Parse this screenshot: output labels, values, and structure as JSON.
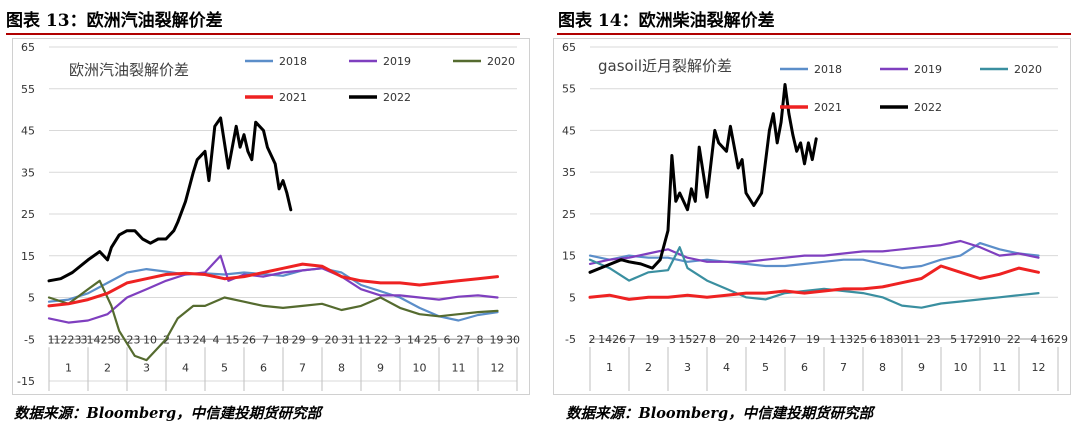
{
  "figures": [
    {
      "id": "left",
      "figure_title": "图表 13：欧洲汽油裂解价差",
      "source": "数据来源：Bloomberg，中信建投期货研究部"
    },
    {
      "id": "right",
      "figure_title": "图表 14：欧洲柴油裂解价差",
      "source": "数据来源：Bloomberg，中信建投期货研究部"
    }
  ],
  "colors": {
    "2018": "#5b8ec9",
    "2019": "#7f3fbf",
    "2020": "#556b2f",
    "2021": "#ee2222",
    "2022": "#000000",
    "gasoil_2020": "#3a8fa0"
  },
  "chart_data": [
    {
      "id": "left",
      "type": "line",
      "title": "欧洲汽油裂解价差",
      "ylim": [
        -15,
        65
      ],
      "yticks": [
        -15,
        -5,
        5,
        15,
        25,
        35,
        45,
        55,
        65
      ],
      "months": [
        "1",
        "2",
        "3",
        "4",
        "5",
        "6",
        "7",
        "8",
        "9",
        "10",
        "11",
        "12"
      ],
      "day_ticks": [
        "1",
        "1223",
        "3",
        "1425",
        "8",
        "23",
        "10",
        "2",
        "13",
        "24",
        "4",
        "15",
        "26",
        "7",
        "18",
        "29",
        "9",
        "20",
        "31",
        "11",
        "22",
        "3",
        "14",
        "25",
        "6",
        "27",
        "8",
        "19",
        "30"
      ],
      "series": [
        {
          "name": "2018",
          "color": "#5b8ec9",
          "x": [
            1,
            1.5,
            2,
            2.5,
            3,
            3.5,
            4,
            4.5,
            5,
            5.5,
            6,
            6.5,
            7,
            7.5,
            8,
            8.5,
            9,
            9.5,
            10,
            10.5,
            11,
            11.5,
            12,
            12.5
          ],
          "values": [
            4,
            4.5,
            6,
            8.5,
            11,
            11.8,
            11.2,
            10.5,
            10.8,
            10.5,
            11,
            10.6,
            10.2,
            11.5,
            12,
            11,
            8,
            6.5,
            5,
            2.5,
            0.5,
            -0.5,
            0.8,
            1.5
          ]
        },
        {
          "name": "2019",
          "color": "#7f3fbf",
          "x": [
            1,
            1.5,
            2,
            2.5,
            3,
            3.5,
            4,
            4.5,
            5,
            5.4,
            5.6,
            6,
            6.5,
            7,
            7.5,
            8,
            8.5,
            9,
            9.5,
            10,
            10.5,
            11,
            11.5,
            12,
            12.5
          ],
          "values": [
            0,
            -1,
            -0.5,
            1,
            5,
            7,
            9,
            10.5,
            11,
            15,
            9,
            10.5,
            10,
            11,
            11.5,
            12,
            10,
            7,
            5.5,
            5.5,
            5,
            4.5,
            5.2,
            5.5,
            5
          ]
        },
        {
          "name": "2020",
          "color": "#556b2f",
          "x": [
            1,
            1.5,
            2,
            2.3,
            2.6,
            2.8,
            3,
            3.2,
            3.5,
            3.8,
            4,
            4.3,
            4.7,
            5,
            5.5,
            6,
            6.5,
            7,
            7.5,
            8,
            8.5,
            9,
            9.5,
            10,
            10.5,
            11,
            11.5,
            12,
            12.5
          ],
          "values": [
            5,
            3.5,
            7,
            9,
            3,
            -3,
            -6,
            -9,
            -10,
            -7,
            -5,
            0,
            3,
            3,
            5,
            4,
            3,
            2.5,
            3,
            3.5,
            2,
            3,
            5,
            2.5,
            1,
            0.5,
            1,
            1.5,
            1.8
          ]
        },
        {
          "name": "2021",
          "color": "#ee2222",
          "x": [
            1,
            1.5,
            2,
            2.5,
            3,
            3.5,
            4,
            4.5,
            5,
            5.5,
            6,
            6.5,
            7,
            7.5,
            8,
            8.5,
            9,
            9.5,
            10,
            10.5,
            11,
            11.5,
            12,
            12.5
          ],
          "values": [
            3,
            3.5,
            4.5,
            6,
            8.5,
            9.5,
            10.5,
            10.8,
            10.5,
            9.5,
            10,
            11,
            12,
            13,
            12.5,
            10,
            9,
            8.5,
            8.5,
            8,
            8.5,
            9,
            9.5,
            10
          ]
        },
        {
          "name": "2022",
          "color": "#000000",
          "x": [
            1,
            1.3,
            1.6,
            2,
            2.3,
            2.5,
            2.6,
            2.8,
            3,
            3.2,
            3.4,
            3.6,
            3.8,
            4,
            4.2,
            4.3,
            4.5,
            4.7,
            4.8,
            5,
            5.1,
            5.25,
            5.4,
            5.6,
            5.8,
            5.9,
            6,
            6.1,
            6.2,
            6.3,
            6.5,
            6.6,
            6.8,
            6.9,
            7,
            7.1,
            7.2
          ],
          "values": [
            9,
            9.5,
            11,
            14,
            16,
            14,
            17,
            20,
            21,
            21,
            19,
            18,
            19,
            19,
            21,
            23,
            28,
            35,
            38,
            40,
            33,
            46,
            48,
            36,
            46,
            41,
            44,
            40,
            38,
            47,
            45,
            41,
            37,
            31,
            33,
            30,
            26
          ]
        }
      ]
    },
    {
      "id": "right",
      "type": "line",
      "title": "gasoil近月裂解价差",
      "ylim": [
        -5,
        65
      ],
      "yticks": [
        -5,
        5,
        15,
        25,
        35,
        45,
        55,
        65
      ],
      "months": [
        "1",
        "2",
        "3",
        "4",
        "5",
        "6",
        "7",
        "8",
        "9",
        "10",
        "11",
        "12"
      ],
      "day_ticks": [
        "2",
        "1426",
        "7",
        "19",
        "3",
        "1527",
        "8",
        "20",
        "2",
        "1426",
        "7",
        "19",
        "1",
        "1325",
        "6",
        "1830",
        "11",
        "23",
        "5",
        "1729",
        "10",
        "22",
        "4",
        "1629"
      ],
      "series": [
        {
          "name": "2018",
          "color": "#5b8ec9",
          "x": [
            1,
            1.5,
            2,
            2.5,
            3,
            3.5,
            4,
            4.5,
            5,
            5.5,
            6,
            6.5,
            7,
            7.5,
            8,
            8.5,
            9,
            9.5,
            10,
            10.5,
            11,
            11.5,
            12,
            12.5
          ],
          "values": [
            15,
            14,
            15,
            14.5,
            14.5,
            13.5,
            14,
            13.5,
            13,
            12.5,
            12.5,
            13,
            13.5,
            14,
            14,
            13,
            12,
            12.5,
            14,
            15,
            18,
            16.5,
            15.5,
            15
          ]
        },
        {
          "name": "2019",
          "color": "#7f3fbf",
          "x": [
            1,
            1.5,
            2,
            2.5,
            3,
            3.5,
            4,
            4.5,
            5,
            5.5,
            6,
            6.5,
            7,
            7.5,
            8,
            8.5,
            9,
            9.5,
            10,
            10.5,
            11,
            11.5,
            12,
            12.5
          ],
          "values": [
            13,
            14,
            14.5,
            15.5,
            16.5,
            14.5,
            13.5,
            13.5,
            13.5,
            14,
            14.5,
            15,
            15,
            15.5,
            16,
            16,
            16.5,
            17,
            17.5,
            18.5,
            17,
            15,
            15.5,
            14.5
          ]
        },
        {
          "name": "2020",
          "color": "#3a8fa0",
          "x": [
            1,
            1.5,
            2,
            2.5,
            3,
            3.3,
            3.5,
            4,
            4.5,
            5,
            5.5,
            6,
            6.5,
            7,
            7.5,
            8,
            8.5,
            9,
            9.5,
            10,
            10.5,
            11,
            11.5,
            12,
            12.5
          ],
          "values": [
            14,
            12,
            9,
            11,
            11.5,
            17,
            12,
            9,
            7,
            5,
            4.5,
            6,
            6.5,
            7,
            6.5,
            6,
            5,
            3,
            2.5,
            3.5,
            4,
            4.5,
            5,
            5.5,
            6
          ]
        },
        {
          "name": "2021",
          "color": "#ee2222",
          "x": [
            1,
            1.5,
            2,
            2.5,
            3,
            3.5,
            4,
            4.5,
            5,
            5.5,
            6,
            6.5,
            7,
            7.5,
            8,
            8.5,
            9,
            9.5,
            10,
            10.5,
            11,
            11.5,
            12,
            12.5
          ],
          "values": [
            5,
            5.5,
            4.5,
            5,
            5,
            5.5,
            5,
            5.5,
            6,
            6,
            6.5,
            6,
            6.5,
            7,
            7,
            7.5,
            8.5,
            9.5,
            12.5,
            11,
            9.5,
            10.5,
            12,
            11
          ]
        },
        {
          "name": "2022",
          "color": "#000000",
          "x": [
            1,
            1.4,
            1.8,
            2,
            2.3,
            2.6,
            2.8,
            3,
            3.1,
            3.2,
            3.3,
            3.5,
            3.6,
            3.7,
            3.8,
            4,
            4.2,
            4.3,
            4.5,
            4.6,
            4.8,
            4.9,
            5,
            5.2,
            5.4,
            5.6,
            5.7,
            5.8,
            5.9,
            6,
            6.1,
            6.2,
            6.3,
            6.4,
            6.5,
            6.6,
            6.7,
            6.8
          ],
          "values": [
            11,
            12.5,
            14,
            13.5,
            13,
            12,
            14,
            21,
            39,
            28,
            30,
            26,
            31,
            28,
            41,
            29,
            45,
            42,
            40,
            46,
            36,
            38,
            30,
            27,
            30,
            45,
            49,
            42,
            47,
            56,
            49,
            44,
            40,
            42,
            37,
            42,
            38,
            43
          ]
        }
      ]
    }
  ]
}
